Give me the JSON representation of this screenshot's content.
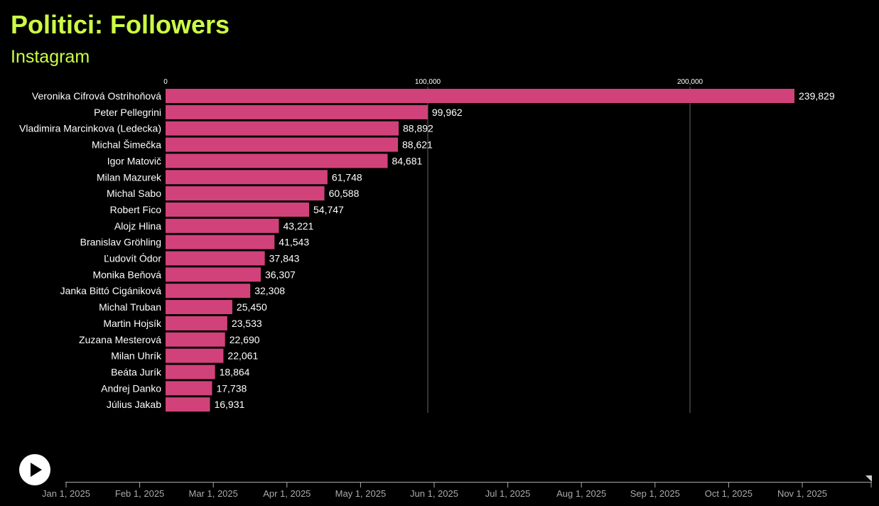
{
  "title": "Politici: Followers",
  "subtitle": "Instagram",
  "colors": {
    "background": "#000000",
    "accent": "#ccff44",
    "bar": "#d1427a",
    "text": "#ffffff",
    "grid": "#666666"
  },
  "chart_data": {
    "type": "bar",
    "orientation": "horizontal",
    "title": "Politici: Followers",
    "subtitle": "Instagram",
    "xlim": [
      0,
      239829
    ],
    "ticks": [
      {
        "value": 0,
        "label": "0"
      },
      {
        "value": 100000,
        "label": "100,000"
      },
      {
        "value": 200000,
        "label": "200,000"
      }
    ],
    "categories": [
      "Veronika Cifrová Ostrihoňová",
      "Peter Pellegrini",
      "Vladimira Marcinkova (Ledecka)",
      "Michal Šimečka",
      "Igor Matovič",
      "Milan Mazurek",
      "Michal Sabo",
      "Robert Fico",
      "Alojz Hlina",
      "Branislav Gröhling",
      "Ľudovít Ódor",
      "Monika Beňová",
      "Janka Bittó Cigániková",
      "Michal Truban",
      "Martin Hojsík",
      "Zuzana Mesterová",
      "Milan Uhrík",
      "Beáta Jurík",
      "Andrej Danko",
      "Július Jakab"
    ],
    "values": [
      239829,
      99962,
      88892,
      88621,
      84681,
      61748,
      60588,
      54747,
      43221,
      41543,
      37843,
      36307,
      32308,
      25450,
      23533,
      22690,
      22061,
      18864,
      17738,
      16931
    ],
    "value_labels": [
      "239,829",
      "99,962",
      "88,892",
      "88,621",
      "84,681",
      "61,748",
      "60,588",
      "54,747",
      "43,221",
      "41,543",
      "37,843",
      "36,307",
      "32,308",
      "25,450",
      "23,533",
      "22,690",
      "22,061",
      "18,864",
      "17,738",
      "16,931"
    ]
  },
  "timeline": {
    "play_label": "Play",
    "months": [
      "Jan 1, 2025",
      "Feb 1, 2025",
      "Mar 1, 2025",
      "Apr 1, 2025",
      "May 1, 2025",
      "Jun 1, 2025",
      "Jul 1, 2025",
      "Aug 1, 2025",
      "Sep 1, 2025",
      "Oct 1, 2025",
      "Nov 1, 2025"
    ],
    "position_fraction": 1.0
  }
}
